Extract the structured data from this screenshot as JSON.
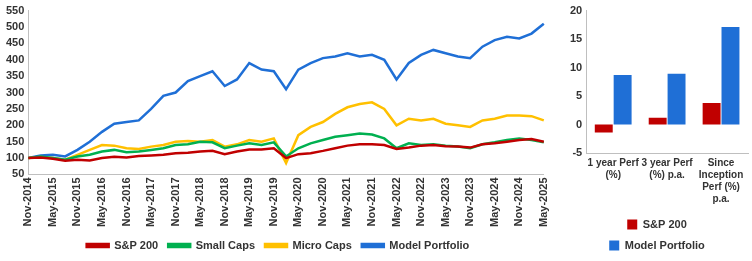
{
  "chart_data": [
    {
      "type": "line",
      "categories": [
        "Nov-2014",
        null,
        "May-2015",
        null,
        "Nov-2015",
        null,
        "May-2016",
        null,
        "Nov-2016",
        null,
        "May-2017",
        null,
        "Nov-2017",
        null,
        "May-2018",
        null,
        "Nov-2018",
        null,
        "May-2019",
        null,
        "Nov-2019",
        null,
        "May-2020",
        null,
        "Nov-2020",
        null,
        "May-2021",
        null,
        "Nov-2021",
        null,
        "May-2022",
        null,
        "Nov-2022",
        null,
        "May-2023",
        null,
        "Nov-2023",
        null,
        "May-2024",
        null,
        "Nov-2024",
        null,
        "May-2025"
      ],
      "series": [
        {
          "name": "S&P 200",
          "color": "#c00000",
          "values": [
            100,
            102,
            98,
            92,
            95,
            93,
            100,
            104,
            102,
            106,
            108,
            110,
            115,
            116,
            120,
            122,
            112,
            120,
            126,
            126,
            130,
            100,
            112,
            115,
            122,
            130,
            138,
            142,
            142,
            140,
            128,
            132,
            138,
            140,
            136,
            135,
            132,
            142,
            145,
            150,
            155,
            158,
            150
          ]
        },
        {
          "name": "Small Caps",
          "color": "#00b050",
          "values": [
            100,
            105,
            100,
            95,
            105,
            110,
            120,
            125,
            118,
            120,
            125,
            130,
            140,
            142,
            150,
            148,
            130,
            138,
            145,
            140,
            148,
            105,
            130,
            145,
            155,
            165,
            170,
            175,
            172,
            160,
            130,
            145,
            140,
            142,
            138,
            135,
            130,
            142,
            148,
            155,
            160,
            155,
            148
          ]
        },
        {
          "name": "Micro Caps",
          "color": "#ffc000",
          "values": [
            100,
            103,
            100,
            95,
            110,
            125,
            140,
            138,
            130,
            128,
            135,
            140,
            150,
            152,
            150,
            155,
            135,
            142,
            155,
            150,
            160,
            85,
            170,
            195,
            210,
            235,
            255,
            265,
            270,
            250,
            200,
            220,
            215,
            220,
            205,
            200,
            195,
            215,
            220,
            230,
            230,
            228,
            215
          ]
        },
        {
          "name": "Model Portfolio",
          "color": "#1f6fd6",
          "values": [
            100,
            108,
            110,
            105,
            125,
            150,
            180,
            205,
            210,
            215,
            250,
            290,
            300,
            335,
            350,
            365,
            320,
            340,
            390,
            370,
            365,
            310,
            370,
            390,
            405,
            410,
            420,
            410,
            415,
            400,
            340,
            390,
            415,
            430,
            420,
            410,
            405,
            440,
            460,
            470,
            465,
            480,
            510
          ]
        }
      ],
      "ylim": [
        50,
        550
      ],
      "yticks": [
        50,
        100,
        150,
        200,
        250,
        300,
        350,
        400,
        450,
        500,
        550
      ],
      "grid": false,
      "legend": "bottom"
    },
    {
      "type": "bar",
      "categories": [
        "1 year Perf (%)",
        "3 year Perf (%) p.a.",
        "Since Inception Perf (%) p.a."
      ],
      "series": [
        {
          "name": "S&P 200",
          "color": "#c00000",
          "values": [
            -1.4,
            1.2,
            3.8
          ]
        },
        {
          "name": "Model Portfolio",
          "color": "#1f6fd6",
          "values": [
            8.7,
            8.9,
            17.1
          ]
        }
      ],
      "ylim": [
        -5,
        20
      ],
      "yticks": [
        -5,
        0,
        5,
        10,
        15,
        20
      ],
      "grid": false,
      "legend": "bottom"
    }
  ]
}
